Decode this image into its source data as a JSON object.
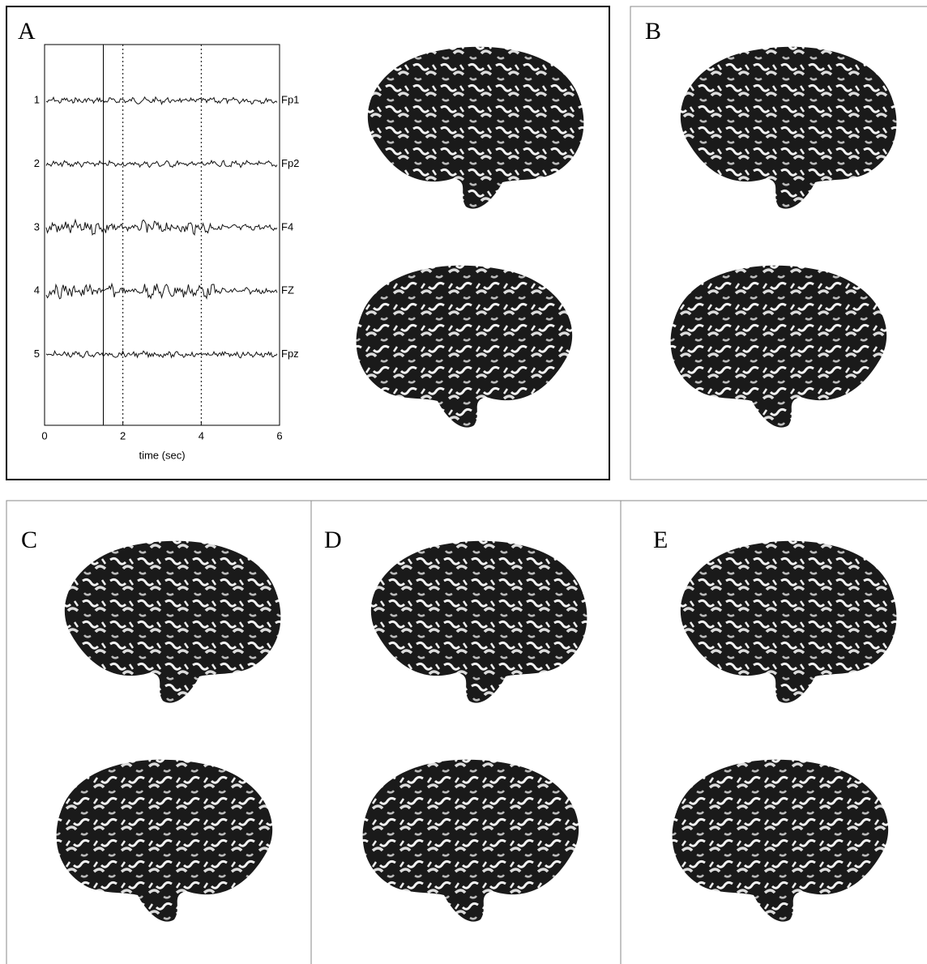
{
  "panels": [
    "A",
    "B",
    "C",
    "D",
    "E"
  ],
  "chart_data": {
    "type": "line",
    "xlabel": "time (sec)",
    "xlim": [
      0,
      6
    ],
    "xticks": [
      0,
      2,
      4,
      6
    ],
    "grid": true,
    "cursor": 1.5,
    "channels": [
      {
        "number": 1,
        "name": "Fp1"
      },
      {
        "number": 2,
        "name": "Fp2"
      },
      {
        "number": 3,
        "name": "F4"
      },
      {
        "number": 4,
        "name": "FZ"
      },
      {
        "number": 5,
        "name": "Fpz"
      }
    ]
  }
}
